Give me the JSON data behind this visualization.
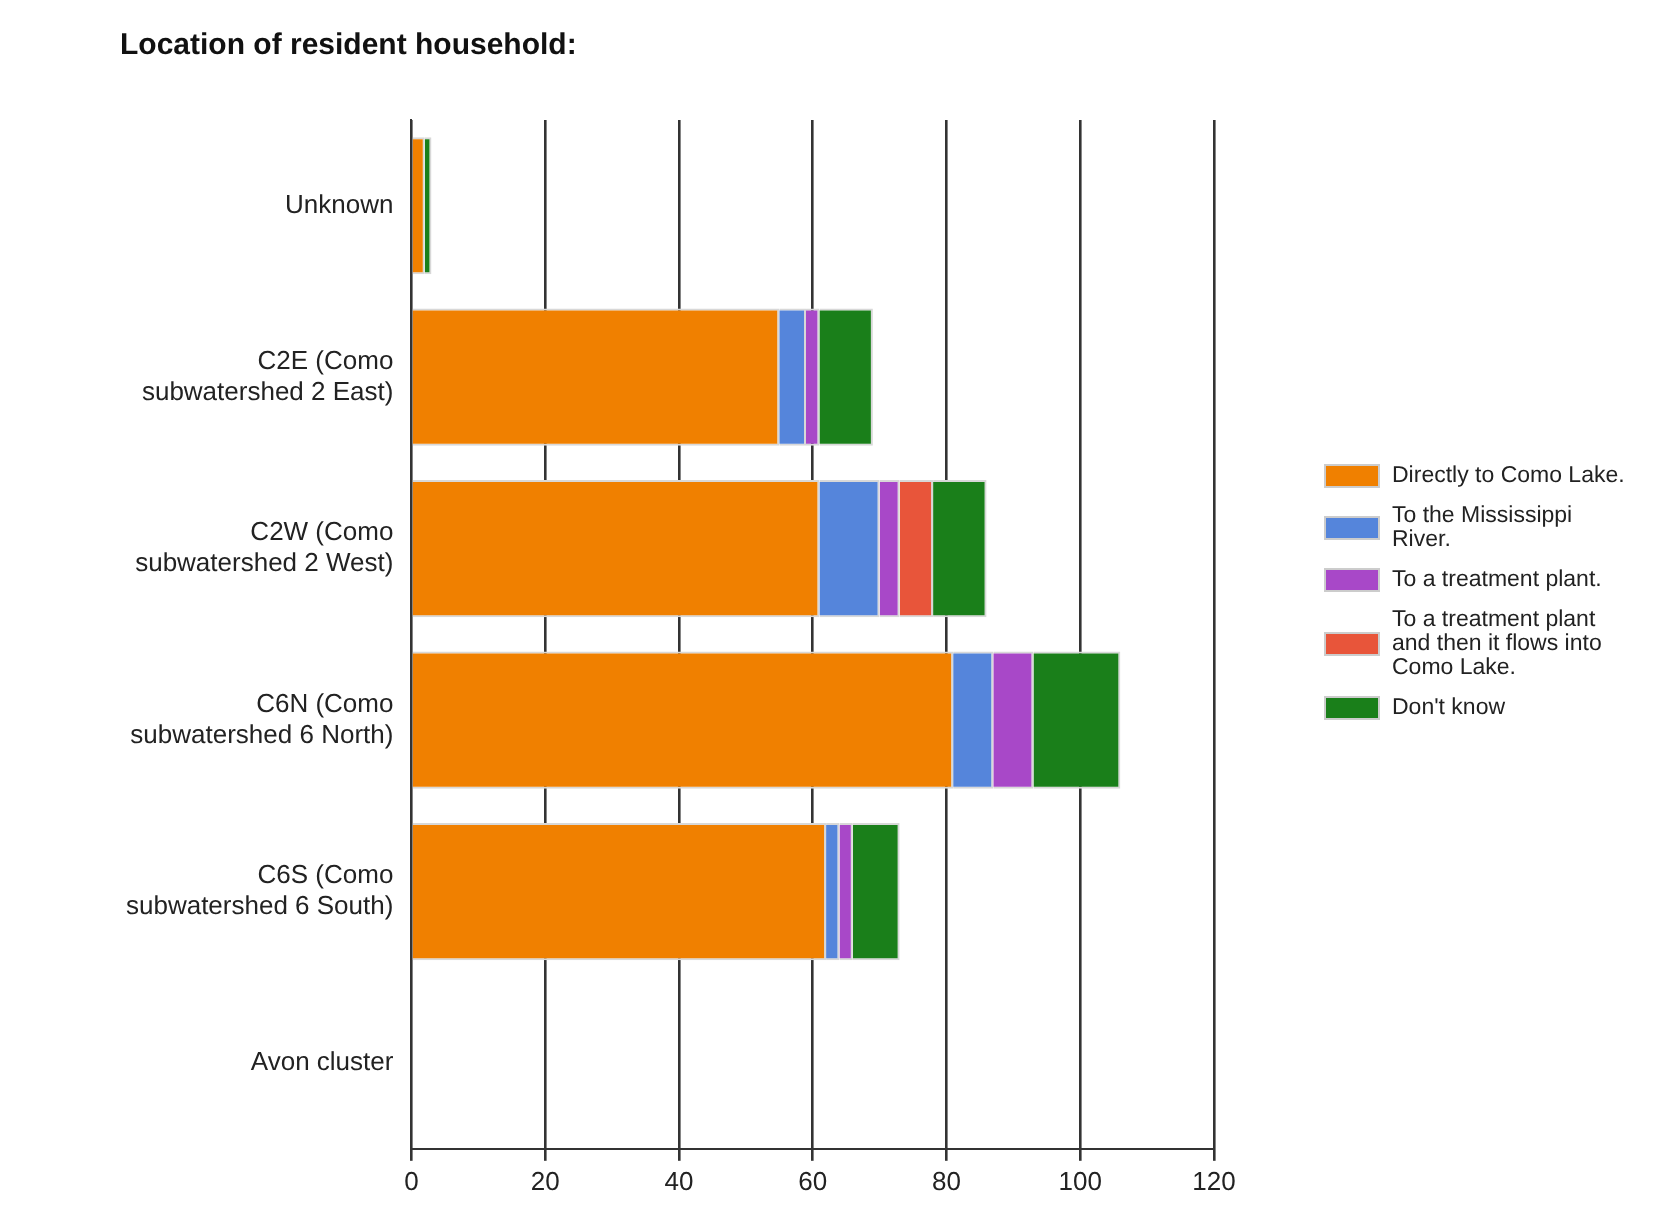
{
  "chart_data": {
    "type": "bar",
    "orientation": "horizontal",
    "stacked": true,
    "title": "Location of resident household:",
    "categories": [
      "Unknown",
      "C2E (Como subwatershed 2 East)",
      "C2W (Como subwatershed 2 West)",
      "C6N (Como subwatershed 6 North)",
      "C6S (Como subwatershed 6 South)",
      "Avon cluster"
    ],
    "series": [
      {
        "name": "Directly to Como Lake.",
        "color": "#f08000",
        "values": [
          2,
          55,
          61,
          81,
          62,
          0
        ]
      },
      {
        "name": "To the Mississippi River.",
        "color": "#5585db",
        "values": [
          0,
          4,
          9,
          6,
          2,
          0
        ]
      },
      {
        "name": "To a treatment plant.",
        "color": "#a848c8",
        "values": [
          0,
          2,
          3,
          6,
          2,
          0
        ]
      },
      {
        "name": "To a treatment plant and then it flows into Como Lake.",
        "color": "#e8553a",
        "values": [
          0,
          0,
          5,
          0,
          0,
          0
        ]
      },
      {
        "name": "Don't know",
        "color": "#1a7f1a",
        "values": [
          1,
          8,
          8,
          13,
          7,
          0
        ]
      }
    ],
    "xlim": [
      0,
      120
    ],
    "xticks": [
      0,
      20,
      40,
      60,
      80,
      100,
      120
    ],
    "grid": "x",
    "legend": "right"
  }
}
